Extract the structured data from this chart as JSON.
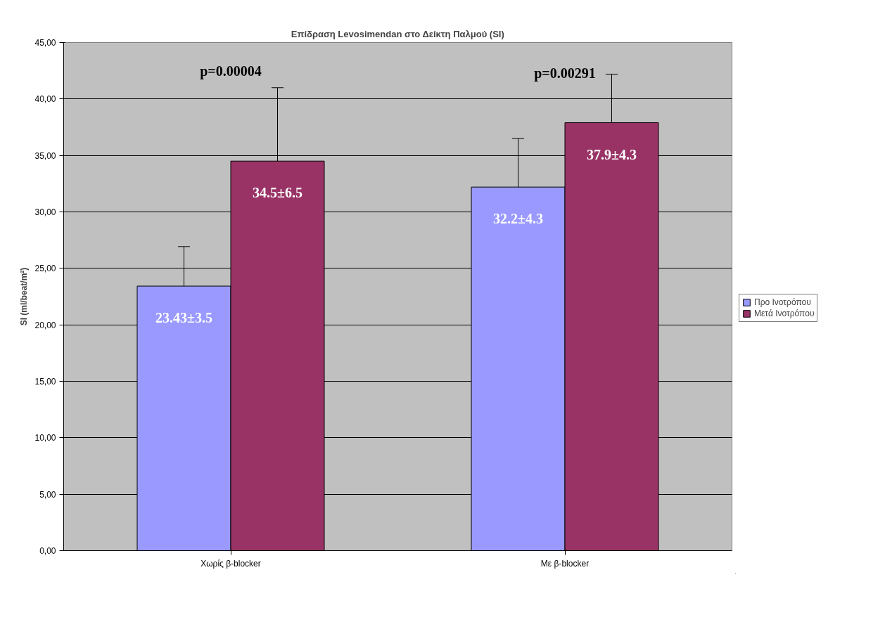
{
  "chart_data": {
    "type": "bar",
    "title": "Επίδραση Levosimendan στο Δείκτη Παλμού (SI)",
    "ylabel": "SI (ml/beat/m²)",
    "categories": [
      "Χωρίς β-blocker",
      "Με β-blocker"
    ],
    "series": [
      {
        "name": "Προ Ινοτρόπου",
        "color": "#9999ff",
        "values": [
          23.43,
          32.2
        ],
        "errors": [
          [
            23.43,
            26.93
          ],
          [
            32.2,
            36.5
          ]
        ],
        "value_labels": [
          "23.43±3.5",
          "32.2±4.3"
        ]
      },
      {
        "name": "Μετά Ινοτρόπου",
        "color": "#993366",
        "values": [
          34.5,
          37.9
        ],
        "errors": [
          [
            34.5,
            41.0
          ],
          [
            37.9,
            42.2
          ]
        ],
        "value_labels": [
          "34.5±6.5",
          "37.9±4.3"
        ]
      }
    ],
    "ylim": [
      0,
      45
    ],
    "yticks": [
      {
        "value": 0,
        "label": "0,00"
      },
      {
        "value": 5,
        "label": "5,00"
      },
      {
        "value": 10,
        "label": "10,00"
      },
      {
        "value": 15,
        "label": "15,00"
      },
      {
        "value": 20,
        "label": "20,00"
      },
      {
        "value": 25,
        "label": "25,00"
      },
      {
        "value": 30,
        "label": "30,00"
      },
      {
        "value": 35,
        "label": "35,00"
      },
      {
        "value": 40,
        "label": "40,00"
      },
      {
        "value": 45,
        "label": "45,00"
      }
    ],
    "annotations": [
      "p=0.00004",
      "p=0.00291"
    ],
    "grid": "y",
    "legend": "right"
  }
}
